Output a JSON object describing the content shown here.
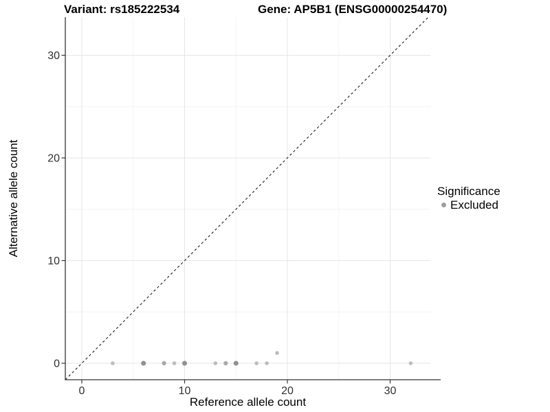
{
  "chart_data": {
    "type": "scatter",
    "title_left": "Variant: rs185222534",
    "title_right": "Gene: AP5B1 (ENSG00000254470)",
    "xlabel": "Reference allele count",
    "ylabel": "Alternative allele count",
    "xlim": [
      -1.6,
      33.9
    ],
    "ylim": [
      -1.6,
      33.7
    ],
    "x_ticks": [
      0,
      10,
      20,
      30
    ],
    "y_ticks": [
      0,
      10,
      20,
      30
    ],
    "x_minor_gridlines": [
      5,
      15,
      25
    ],
    "y_minor_gridlines": [
      5,
      15,
      25
    ],
    "grid": "on",
    "reference_line": {
      "type": "identity",
      "style": "dashed",
      "color": "#1a1a1a"
    },
    "series": [
      {
        "name": "Excluded",
        "points": [
          {
            "x": 3,
            "y": 0,
            "shade": "light"
          },
          {
            "x": 6,
            "y": 0,
            "shade": "dark"
          },
          {
            "x": 8,
            "y": 0,
            "shade": "medium"
          },
          {
            "x": 9,
            "y": 0,
            "shade": "light"
          },
          {
            "x": 10,
            "y": 0,
            "shade": "dark"
          },
          {
            "x": 13,
            "y": 0,
            "shade": "light"
          },
          {
            "x": 14,
            "y": 0,
            "shade": "medium"
          },
          {
            "x": 15,
            "y": 0,
            "shade": "dark"
          },
          {
            "x": 17,
            "y": 0,
            "shade": "light"
          },
          {
            "x": 18,
            "y": 0,
            "shade": "light"
          },
          {
            "x": 19,
            "y": 1,
            "shade": "light"
          },
          {
            "x": 32,
            "y": 0,
            "shade": "light"
          }
        ]
      }
    ],
    "point_shades": {
      "light": "#bcbcbc",
      "medium": "#a8a8a8",
      "dark": "#909090"
    },
    "legend": {
      "position": "right",
      "title": "Significance",
      "items": [
        {
          "label": "Excluded",
          "color": "#9e9e9e"
        }
      ]
    }
  },
  "colors": {
    "axis_line": "#333333",
    "tick_label": "#303030",
    "grid_major": "#e5e5e5",
    "grid_minor": "#f2f2f2"
  }
}
